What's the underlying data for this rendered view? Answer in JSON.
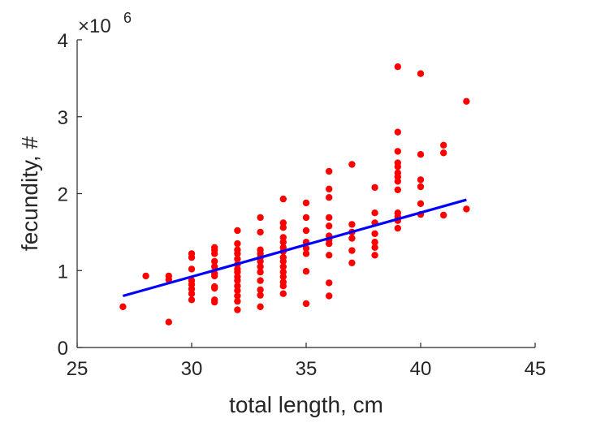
{
  "chart_data": {
    "type": "scatter",
    "xlabel": "total length, cm",
    "ylabel": "fecundity, #",
    "xlim": [
      25,
      45
    ],
    "ylim": [
      0,
      4
    ],
    "xticks": [
      "25",
      "30",
      "35",
      "40",
      "45"
    ],
    "yticks": [
      "0",
      "1",
      "2",
      "3",
      "4"
    ],
    "y_multiplier": {
      "base": "×10",
      "exponent": "6"
    },
    "grid": false,
    "series": [
      {
        "kind": "scatter",
        "color": "#ff0000",
        "points": [
          [
            27,
            0.53
          ],
          [
            28,
            0.93
          ],
          [
            29,
            0.93
          ],
          [
            29,
            0.88
          ],
          [
            29,
            0.33
          ],
          [
            30,
            1.22
          ],
          [
            30,
            1.17
          ],
          [
            30,
            1.02
          ],
          [
            30,
            0.87
          ],
          [
            30,
            0.82
          ],
          [
            30,
            0.76
          ],
          [
            30,
            0.7
          ],
          [
            30,
            0.62
          ],
          [
            31,
            1.3
          ],
          [
            31,
            1.27
          ],
          [
            31,
            1.22
          ],
          [
            31,
            1.12
          ],
          [
            31,
            1.05
          ],
          [
            31,
            0.96
          ],
          [
            31,
            0.93
          ],
          [
            31,
            0.79
          ],
          [
            31,
            0.77
          ],
          [
            31,
            0.62
          ],
          [
            31,
            0.59
          ],
          [
            32,
            1.52
          ],
          [
            32,
            1.35
          ],
          [
            32,
            1.27
          ],
          [
            32,
            1.22
          ],
          [
            32,
            1.15
          ],
          [
            32,
            1.08
          ],
          [
            32,
            1.02
          ],
          [
            32,
            0.98
          ],
          [
            32,
            0.92
          ],
          [
            32,
            0.87
          ],
          [
            32,
            0.8
          ],
          [
            32,
            0.74
          ],
          [
            32,
            0.67
          ],
          [
            32,
            0.6
          ],
          [
            32,
            0.49
          ],
          [
            33,
            1.69
          ],
          [
            33,
            1.5
          ],
          [
            33,
            1.27
          ],
          [
            33,
            1.22
          ],
          [
            33,
            1.17
          ],
          [
            33,
            1.12
          ],
          [
            33,
            1.05
          ],
          [
            33,
            0.98
          ],
          [
            33,
            0.87
          ],
          [
            33,
            0.75
          ],
          [
            33,
            0.68
          ],
          [
            33,
            0.53
          ],
          [
            34,
            1.93
          ],
          [
            34,
            1.62
          ],
          [
            34,
            1.56
          ],
          [
            34,
            1.43
          ],
          [
            34,
            1.37
          ],
          [
            34,
            1.3
          ],
          [
            34,
            1.25
          ],
          [
            34,
            1.17
          ],
          [
            34,
            1.12
          ],
          [
            34,
            1.05
          ],
          [
            34,
            0.98
          ],
          [
            34,
            0.92
          ],
          [
            34,
            0.85
          ],
          [
            34,
            0.8
          ],
          [
            34,
            0.7
          ],
          [
            35,
            1.88
          ],
          [
            35,
            1.69
          ],
          [
            35,
            1.52
          ],
          [
            35,
            1.37
          ],
          [
            35,
            1.29
          ],
          [
            35,
            1.22
          ],
          [
            35,
            0.99
          ],
          [
            35,
            0.57
          ],
          [
            36,
            2.29
          ],
          [
            36,
            2.06
          ],
          [
            36,
            1.95
          ],
          [
            36,
            1.69
          ],
          [
            36,
            1.58
          ],
          [
            36,
            1.45
          ],
          [
            36,
            1.4
          ],
          [
            36,
            1.35
          ],
          [
            36,
            1.2
          ],
          [
            36,
            0.84
          ],
          [
            36,
            0.67
          ],
          [
            37,
            2.38
          ],
          [
            37,
            1.6
          ],
          [
            37,
            1.5
          ],
          [
            37,
            1.42
          ],
          [
            37,
            1.26
          ],
          [
            37,
            1.1
          ],
          [
            38,
            2.08
          ],
          [
            38,
            1.75
          ],
          [
            38,
            1.62
          ],
          [
            38,
            1.48
          ],
          [
            38,
            1.37
          ],
          [
            38,
            1.3
          ],
          [
            38,
            1.2
          ],
          [
            39,
            3.65
          ],
          [
            39,
            2.8
          ],
          [
            39,
            2.55
          ],
          [
            39,
            2.4
          ],
          [
            39,
            2.35
          ],
          [
            39,
            2.27
          ],
          [
            39,
            2.22
          ],
          [
            39,
            2.16
          ],
          [
            39,
            2.05
          ],
          [
            39,
            1.75
          ],
          [
            39,
            1.7
          ],
          [
            39,
            1.65
          ],
          [
            39,
            1.55
          ],
          [
            40,
            3.56
          ],
          [
            40,
            2.51
          ],
          [
            40,
            2.18
          ],
          [
            40,
            2.09
          ],
          [
            40,
            1.87
          ],
          [
            40,
            1.73
          ],
          [
            41,
            2.63
          ],
          [
            41,
            2.53
          ],
          [
            41,
            1.72
          ],
          [
            42,
            3.2
          ],
          [
            42,
            1.8
          ]
        ]
      },
      {
        "kind": "line",
        "color": "#0000ff",
        "points": [
          [
            27,
            0.67
          ],
          [
            42,
            1.92
          ]
        ]
      }
    ]
  }
}
